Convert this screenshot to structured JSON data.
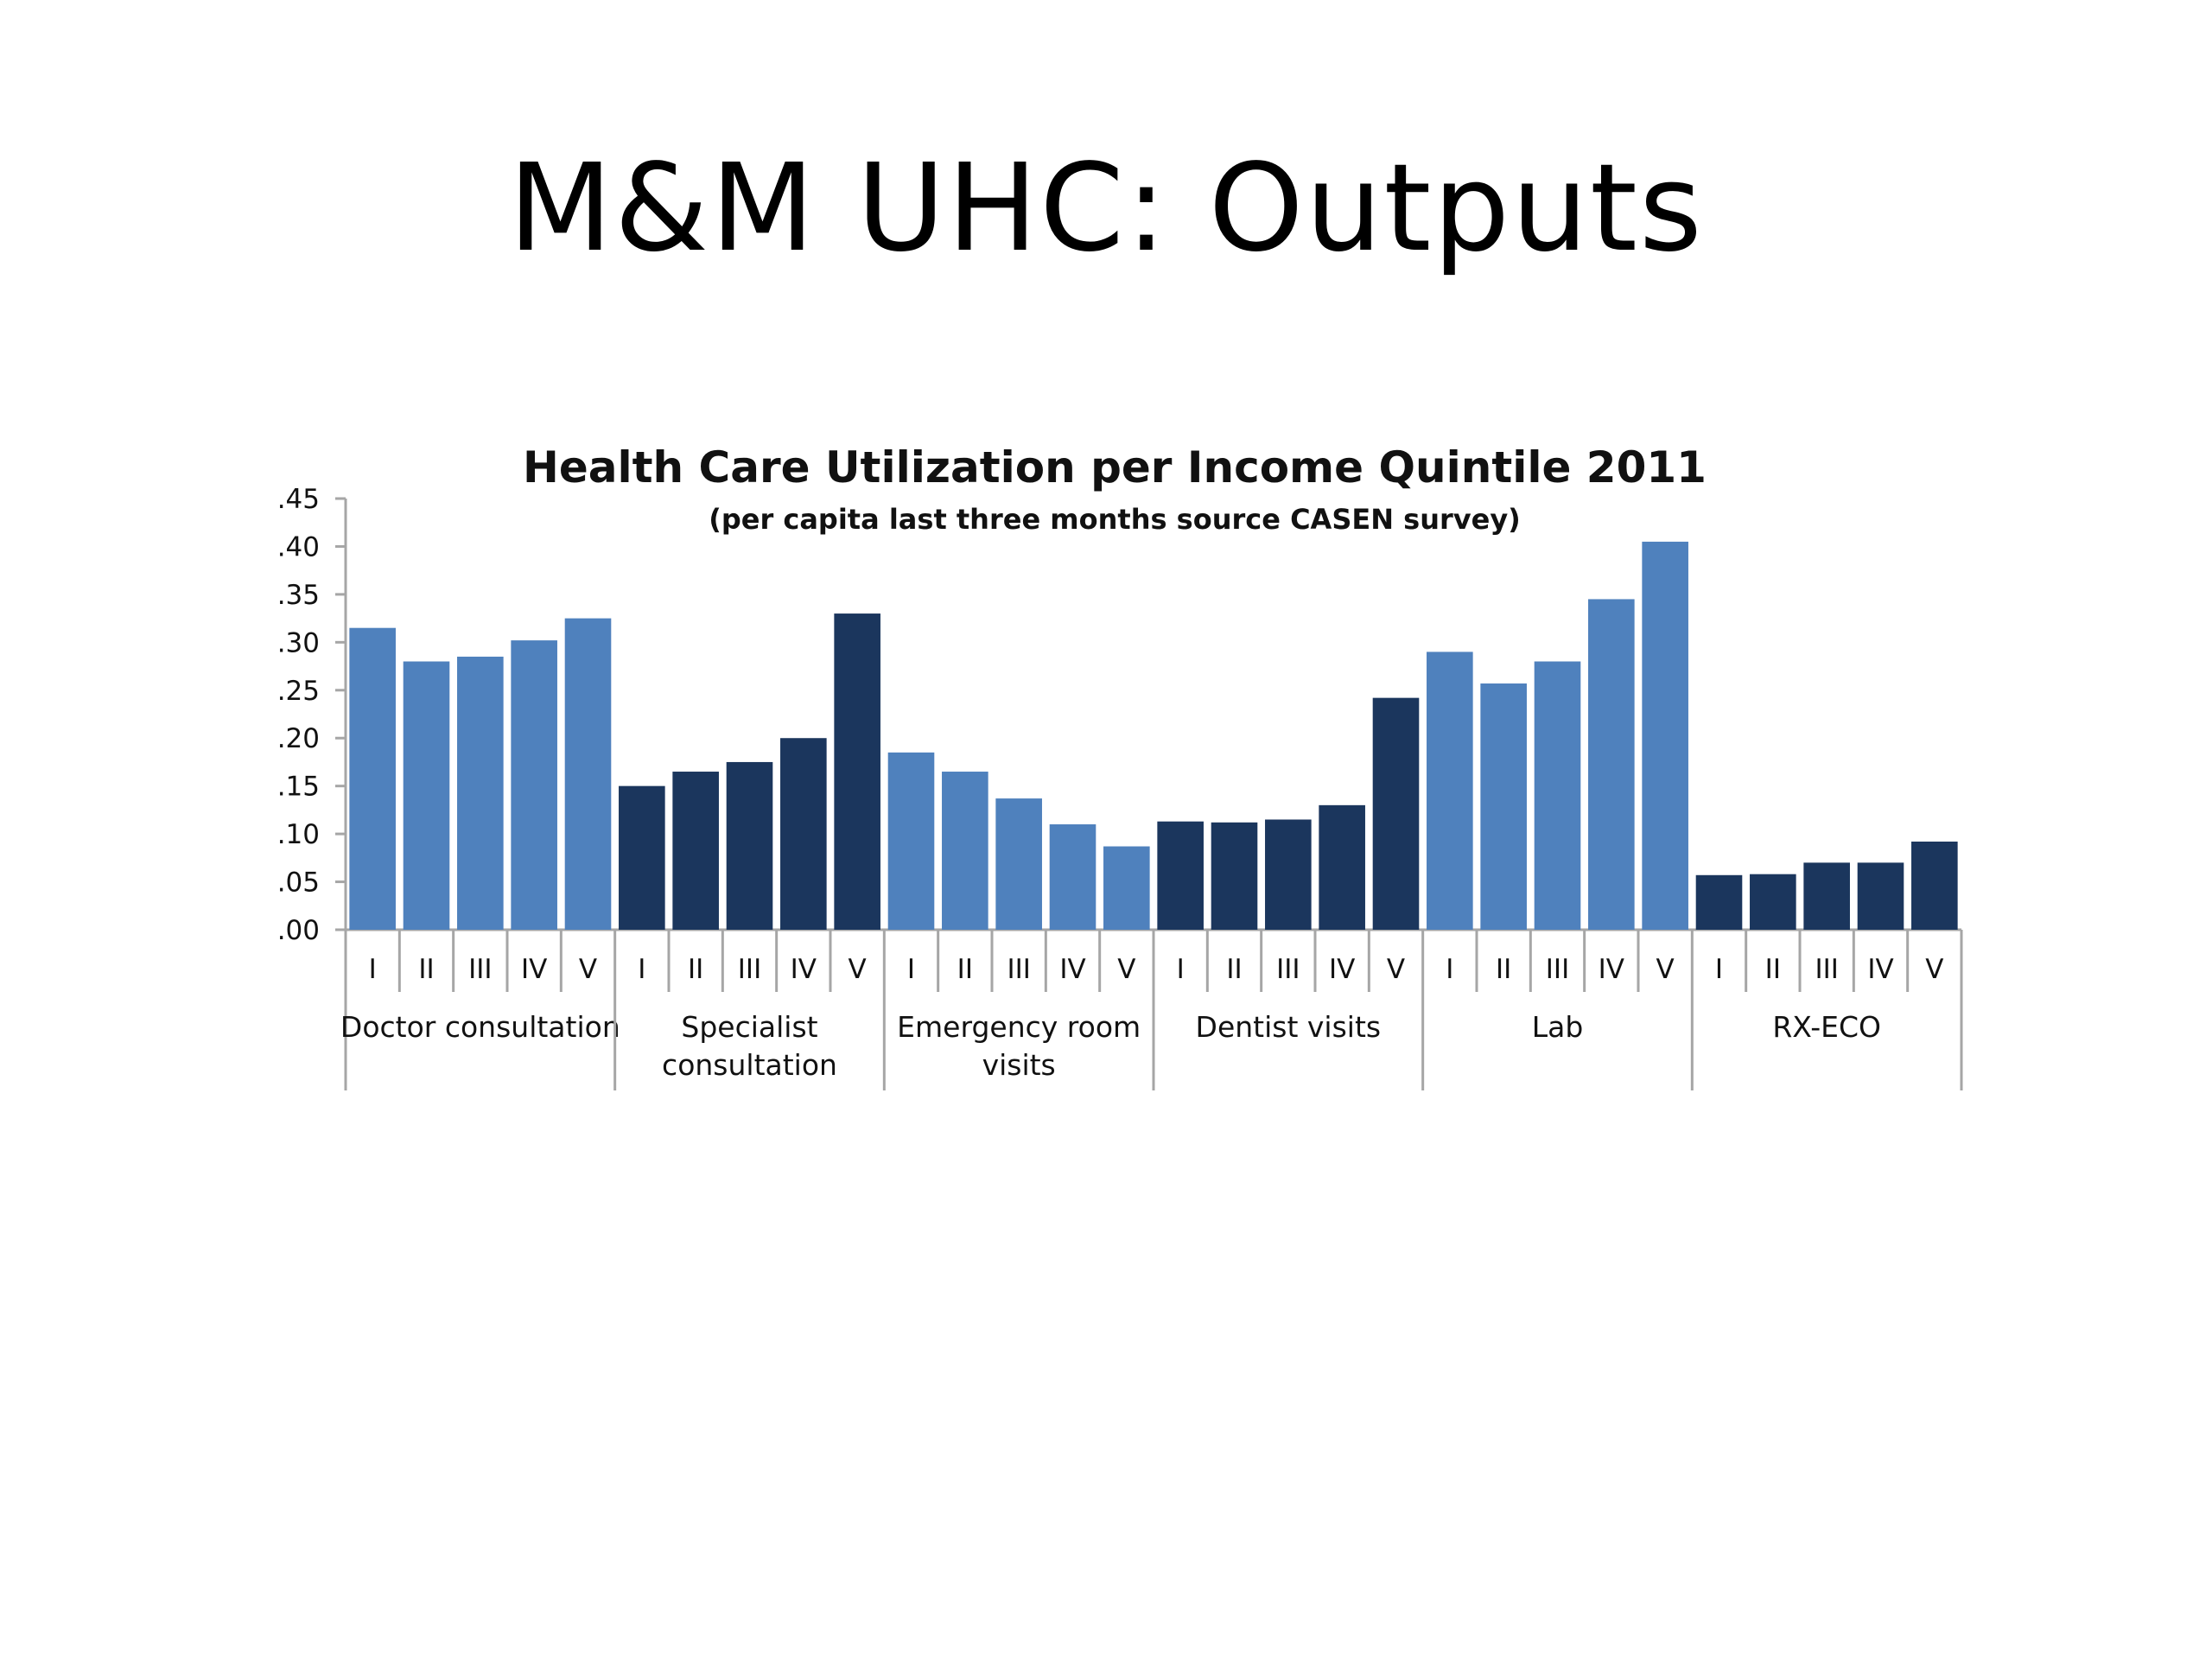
{
  "slide": {
    "title": "M&M UHC: Outputs"
  },
  "colors": {
    "light_bar": "#4f81bd",
    "dark_bar": "#1b365d",
    "axis": "#a6a6a6"
  },
  "chart_data": {
    "type": "bar",
    "title": "Health Care Utilization per Income Quintile 2011",
    "subtitle": "(per capita last three months source CASEN survey)",
    "ylim": [
      0,
      0.45
    ],
    "y_ticks": [
      ".00",
      ".05",
      ".10",
      ".15",
      ".20",
      ".25",
      ".30",
      ".35",
      ".40",
      ".45"
    ],
    "quintile_labels": [
      "I",
      "II",
      "III",
      "IV",
      "V"
    ],
    "legend": "none",
    "grid": false,
    "groups": [
      {
        "name": [
          "Doctor consultation"
        ],
        "shade": "light",
        "values": [
          0.315,
          0.28,
          0.285,
          0.302,
          0.325
        ]
      },
      {
        "name": [
          "Specialist",
          "consultation"
        ],
        "shade": "dark",
        "values": [
          0.15,
          0.165,
          0.175,
          0.2,
          0.33
        ]
      },
      {
        "name": [
          "Emergency room",
          "visits"
        ],
        "shade": "light",
        "values": [
          0.185,
          0.165,
          0.137,
          0.11,
          0.087
        ]
      },
      {
        "name": [
          "Dentist visits"
        ],
        "shade": "dark",
        "values": [
          0.113,
          0.112,
          0.115,
          0.13,
          0.242
        ]
      },
      {
        "name": [
          "Lab"
        ],
        "shade": "light",
        "values": [
          0.29,
          0.257,
          0.28,
          0.345,
          0.405
        ]
      },
      {
        "name": [
          "RX-ECO"
        ],
        "shade": "dark",
        "values": [
          0.057,
          0.058,
          0.07,
          0.07,
          0.092
        ]
      }
    ]
  }
}
